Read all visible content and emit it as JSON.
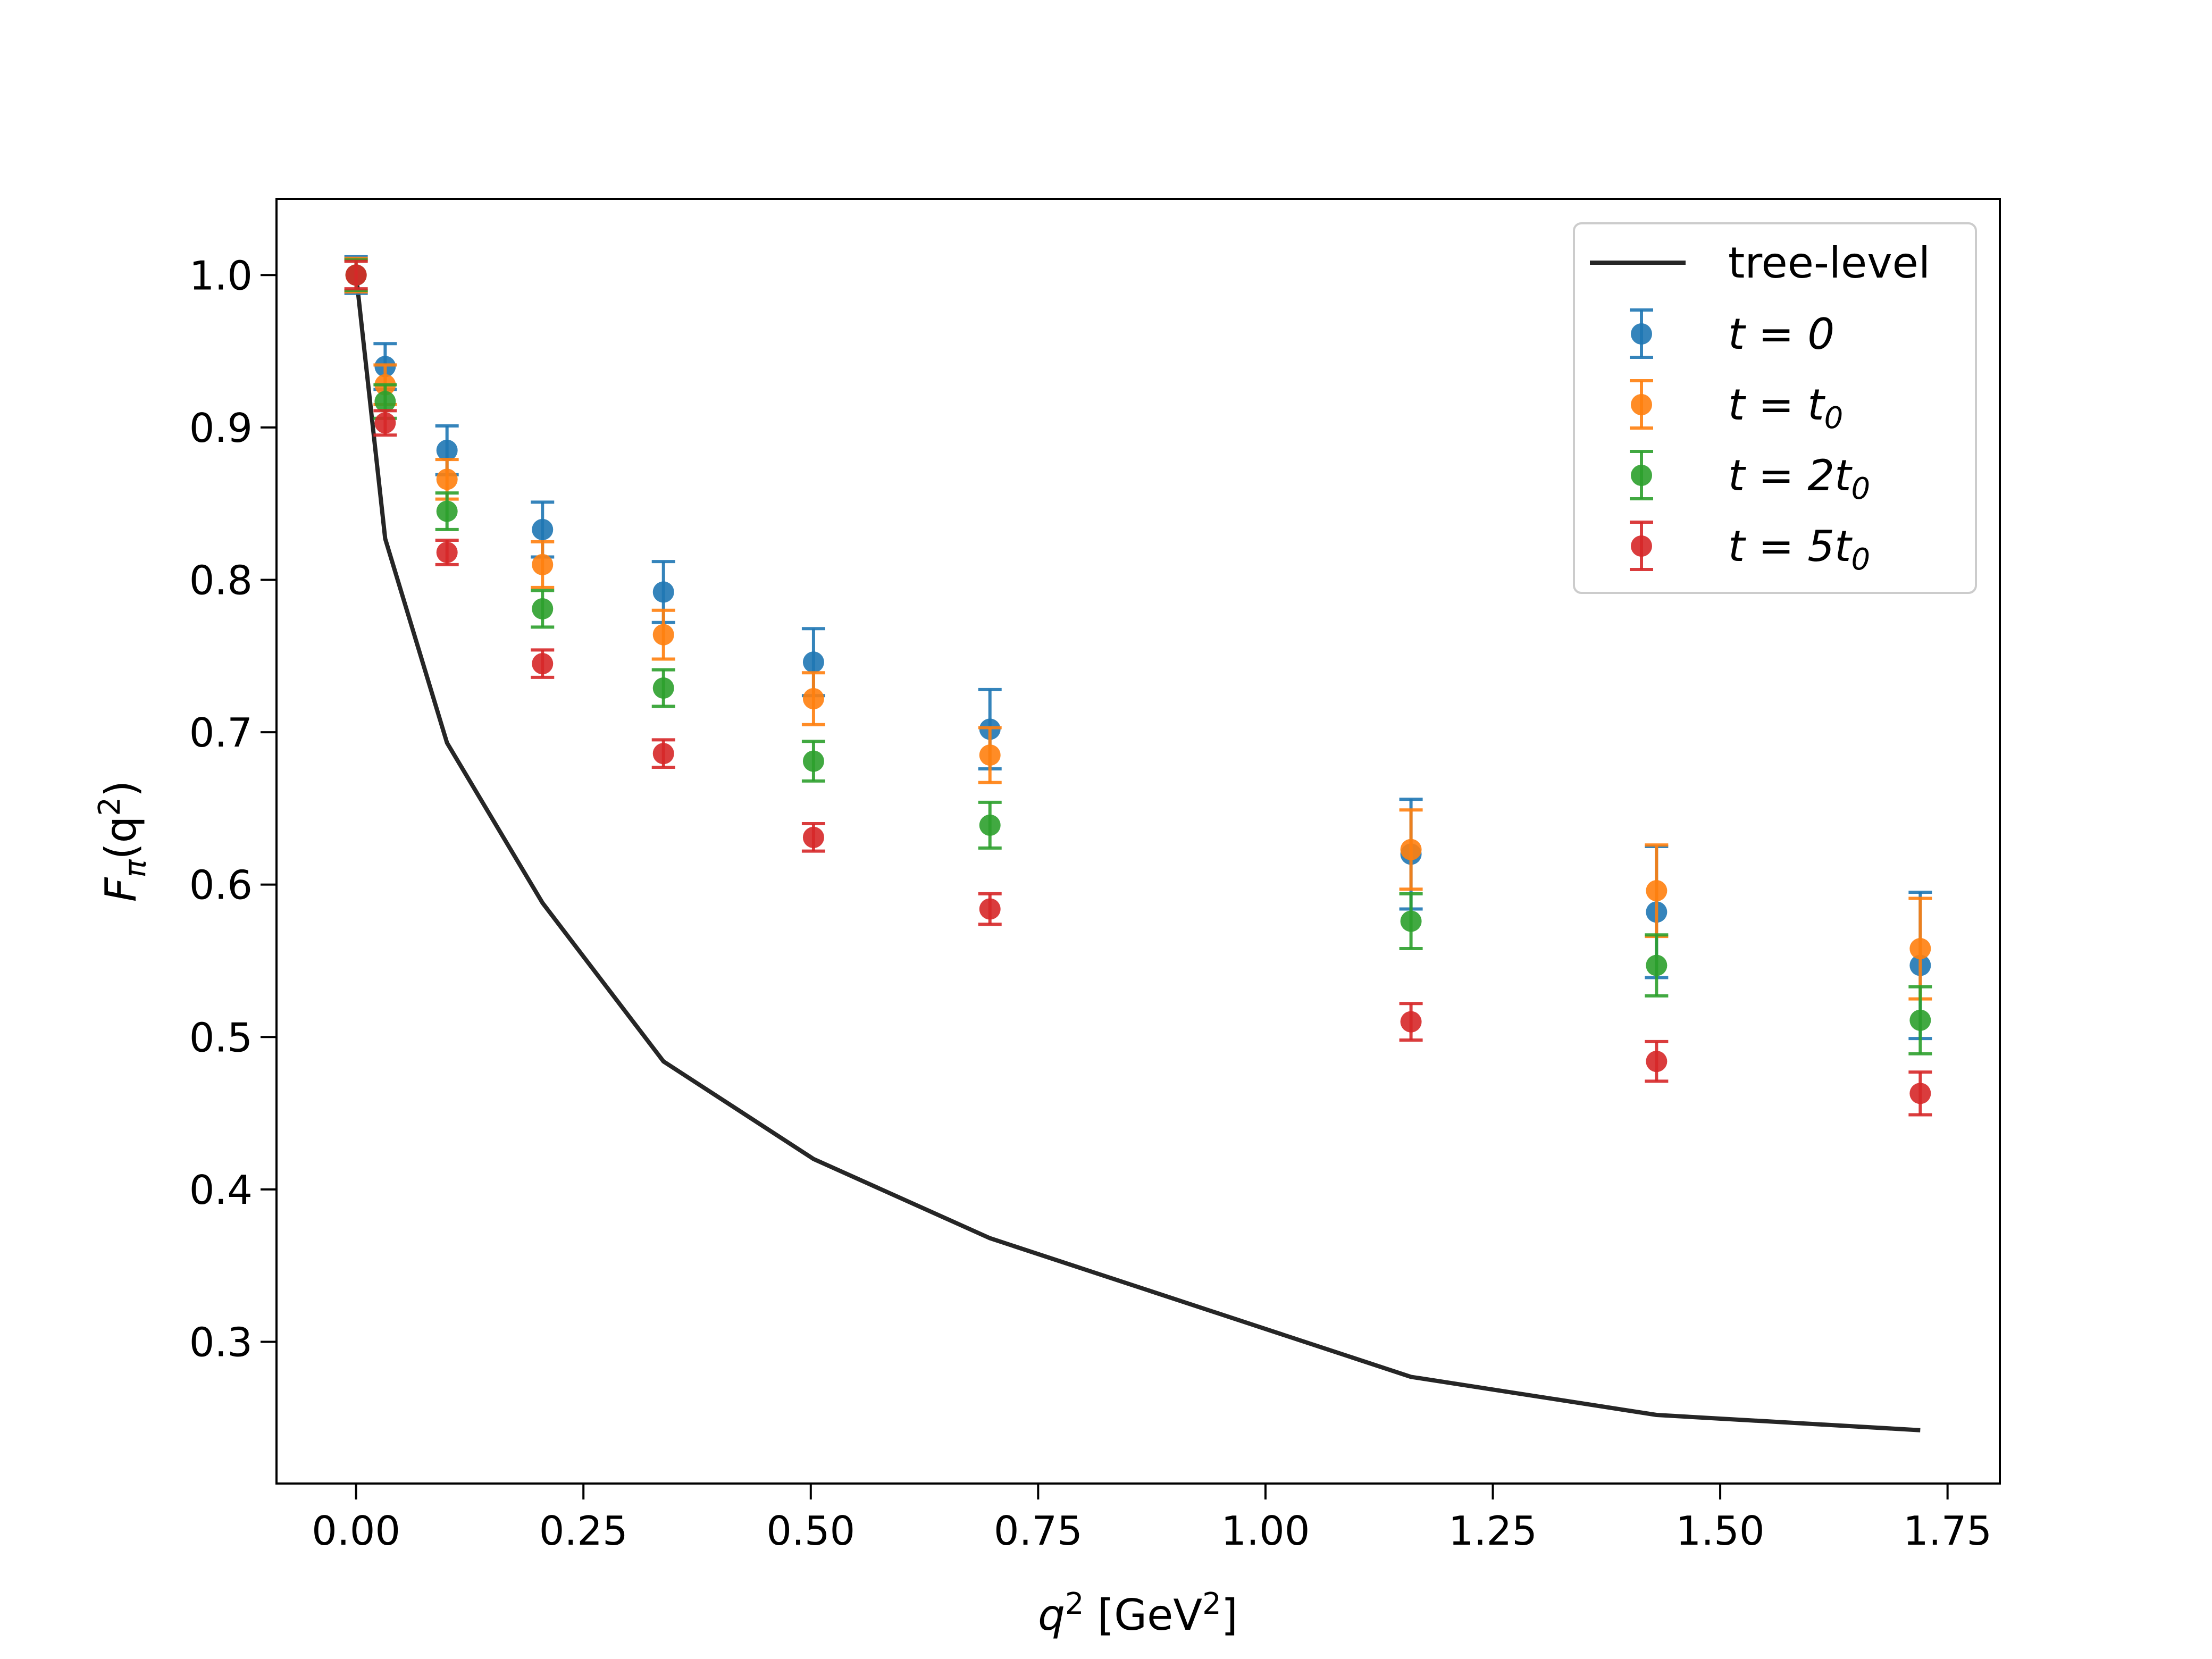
{
  "chart_data": {
    "type": "line",
    "title": "",
    "xlabel": "q² [GeV²]",
    "xlabel_parts": {
      "base": "q",
      "exp": "2",
      "unit_open": " [GeV",
      "unit_exp": "2",
      "unit_close": "]"
    },
    "ylabel": "Fπ(q²)",
    "ylabel_parts": {
      "base": "F",
      "sub": "π",
      "open": "(q",
      "exp": "2",
      "close": ")"
    },
    "xlim": [
      -0.0875,
      1.8075
    ],
    "ylim": [
      0.207,
      1.05
    ],
    "x_ticks": [
      0.0,
      0.25,
      0.5,
      0.75,
      1.0,
      1.25,
      1.5,
      1.75
    ],
    "x_tick_labels": [
      "0.00",
      "0.25",
      "0.50",
      "0.75",
      "1.00",
      "1.25",
      "1.50",
      "1.75"
    ],
    "y_ticks": [
      0.3,
      0.4,
      0.5,
      0.6,
      0.7,
      0.8,
      0.9,
      1.0
    ],
    "y_tick_labels": [
      "0.3",
      "0.4",
      "0.5",
      "0.6",
      "0.7",
      "0.8",
      "0.9",
      "1.0"
    ],
    "grid": false,
    "legend_position": "top-right",
    "x": [
      0.0,
      0.032,
      0.1,
      0.205,
      0.338,
      0.503,
      0.697,
      1.16,
      1.43,
      1.72
    ],
    "series": [
      {
        "name": "tree-level",
        "kind": "line",
        "color": "#262626",
        "values": [
          1.0,
          0.827,
          0.693,
          0.588,
          0.484,
          0.42,
          0.368,
          0.277,
          0.252,
          0.242
        ]
      },
      {
        "name": "t = 0",
        "label": {
          "main": "t = 0",
          "sub": ""
        },
        "kind": "errorbar",
        "color": "#1f77b4",
        "values": [
          1.0,
          0.94,
          0.885,
          0.833,
          0.792,
          0.746,
          0.702,
          0.62,
          0.582,
          0.547
        ],
        "errors": [
          0.012,
          0.015,
          0.016,
          0.018,
          0.02,
          0.022,
          0.026,
          0.036,
          0.043,
          0.048
        ]
      },
      {
        "name": "t = t0",
        "label": {
          "main": "t = t",
          "sub": "0"
        },
        "kind": "errorbar",
        "color": "#ff7f0e",
        "values": [
          1.0,
          0.928,
          0.866,
          0.81,
          0.764,
          0.722,
          0.685,
          0.623,
          0.596,
          0.558
        ],
        "errors": [
          0.011,
          0.013,
          0.013,
          0.015,
          0.016,
          0.017,
          0.018,
          0.026,
          0.03,
          0.033
        ]
      },
      {
        "name": "t = 2t0",
        "label": {
          "main": "t = 2t",
          "sub": "0"
        },
        "kind": "errorbar",
        "color": "#2ca02c",
        "values": [
          1.0,
          0.917,
          0.845,
          0.781,
          0.729,
          0.681,
          0.639,
          0.576,
          0.547,
          0.511
        ],
        "errors": [
          0.01,
          0.011,
          0.012,
          0.012,
          0.012,
          0.013,
          0.015,
          0.018,
          0.02,
          0.022
        ]
      },
      {
        "name": "t = 5t0",
        "label": {
          "main": "t = 5t",
          "sub": "0"
        },
        "kind": "errorbar",
        "color": "#d62728",
        "values": [
          1.0,
          0.903,
          0.818,
          0.745,
          0.686,
          0.631,
          0.584,
          0.51,
          0.484,
          0.463
        ],
        "errors": [
          0.009,
          0.008,
          0.008,
          0.009,
          0.009,
          0.009,
          0.01,
          0.012,
          0.013,
          0.014
        ]
      }
    ]
  }
}
